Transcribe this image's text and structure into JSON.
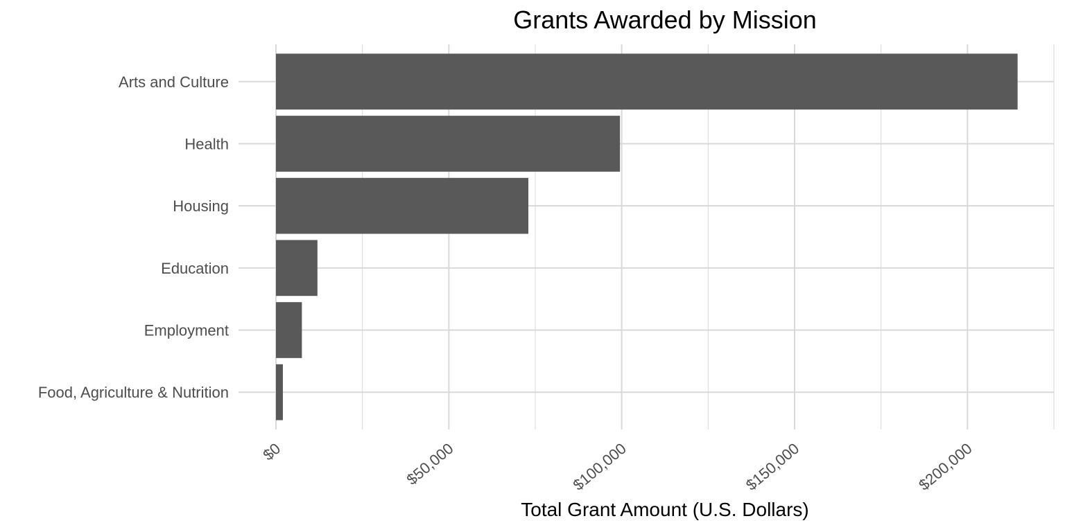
{
  "chart_data": {
    "type": "bar",
    "orientation": "horizontal",
    "title": "Grants Awarded by Mission",
    "xlabel": "Total Grant Amount (U.S. Dollars)",
    "ylabel": "",
    "categories": [
      "Arts and Culture",
      "Health",
      "Housing",
      "Education",
      "Employment",
      "Food, Agriculture & Nutrition"
    ],
    "values": [
      214500,
      99500,
      73000,
      12000,
      7500,
      2000
    ],
    "xlim": [
      0,
      225000
    ],
    "x_ticks": [
      0,
      50000,
      100000,
      150000,
      200000
    ],
    "x_tick_labels": [
      "$0",
      "$50,000",
      "$100,000",
      "$150,000",
      "$200,000"
    ],
    "grid": true,
    "legend": "none",
    "colors": {
      "bar": "#595959",
      "grid": "#d9d9d9",
      "axis_text": "#4d4d4d",
      "title": "#000000"
    }
  }
}
